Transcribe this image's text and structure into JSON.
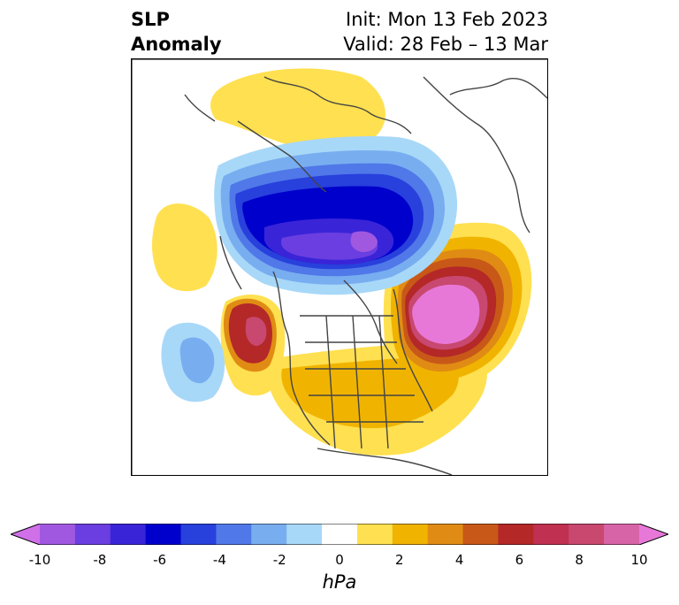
{
  "title": {
    "left_line1": "SLP",
    "left_line2": "Anomaly",
    "init": "Init: Mon 13 Feb 2023",
    "valid": "Valid: 28 Feb – 13 Mar"
  },
  "colorbar": {
    "unit": "hPa",
    "ticks": [
      "-10",
      "-8",
      "-6",
      "-4",
      "-2",
      "0",
      "2",
      "4",
      "6",
      "8",
      "10"
    ],
    "extend": "both",
    "colors": [
      "#d070e8",
      "#a058e0",
      "#6a3ee0",
      "#3a24d8",
      "#0000cc",
      "#2840dc",
      "#5078e8",
      "#78aef0",
      "#a8d8f8",
      "#ffffff",
      "#ffe050",
      "#f0b400",
      "#e08c14",
      "#c85818",
      "#b42828",
      "#c03050",
      "#c84870",
      "#d864a8",
      "#e878d8"
    ]
  },
  "colors": {
    "coast": "#444444",
    "frame": "#000000"
  }
}
